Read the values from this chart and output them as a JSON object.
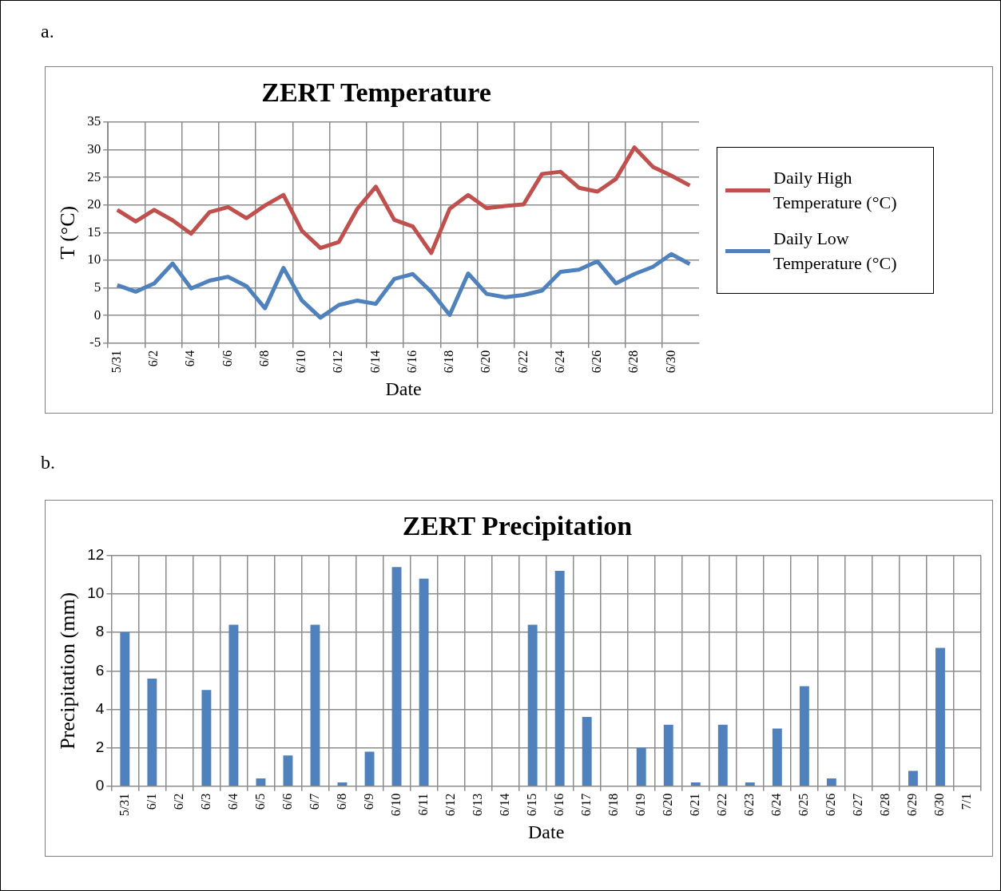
{
  "chart_data": [
    {
      "type": "line",
      "title": "ZERT Temperature",
      "annotations": [
        "a."
      ],
      "xlabel": "Date",
      "ylabel": "T (°C)",
      "categories": [
        "5/31",
        null,
        "6/2",
        null,
        "6/4",
        null,
        "6/6",
        null,
        "6/8",
        null,
        "6/10",
        null,
        "6/12",
        null,
        "6/14",
        null,
        "6/16",
        null,
        "6/18",
        null,
        "6/20",
        null,
        "6/22",
        null,
        "6/24",
        null,
        "6/26",
        null,
        "6/28",
        null,
        "6/30",
        null
      ],
      "series": [
        {
          "name": "Daily High Temperature (°C)",
          "color": "#c0504d",
          "values": [
            19.1,
            17.0,
            19.1,
            17.2,
            14.8,
            18.7,
            19.6,
            17.6,
            19.9,
            21.8,
            15.3,
            12.2,
            13.3,
            19.3,
            23.3,
            17.3,
            16.1,
            11.3,
            19.3,
            21.8,
            19.4,
            19.8,
            20.1,
            25.6,
            26.0,
            23.1,
            22.4,
            24.7,
            30.4,
            26.9,
            25.3,
            23.5
          ]
        },
        {
          "name": "Daily Low Temperature (°C)",
          "color": "#4f81bd",
          "values": [
            5.5,
            4.3,
            5.8,
            9.4,
            4.9,
            6.3,
            7.0,
            5.3,
            1.3,
            8.6,
            2.7,
            -0.4,
            1.9,
            2.7,
            2.1,
            6.6,
            7.5,
            4.3,
            0.1,
            7.6,
            3.9,
            3.3,
            3.7,
            4.5,
            7.9,
            8.3,
            9.8,
            5.8,
            7.5,
            8.8,
            11.1,
            9.3
          ]
        }
      ],
      "ylim": [
        -5,
        35
      ],
      "yticks": [
        -5,
        0,
        5,
        10,
        15,
        20,
        25,
        30,
        35
      ],
      "grid": true,
      "legend": "right",
      "marker": "none",
      "line_style": "solid"
    },
    {
      "type": "bar",
      "title": "ZERT Precipitation",
      "annotations": [
        "b."
      ],
      "xlabel": "Date",
      "ylabel": "Precipitation (mm)",
      "categories": [
        "5/31",
        "6/1",
        "6/2",
        "6/3",
        "6/4",
        "6/5",
        "6/6",
        "6/7",
        "6/8",
        "6/9",
        "6/10",
        "6/11",
        "6/12",
        "6/13",
        "6/14",
        "6/15",
        "6/16",
        "6/17",
        "6/18",
        "6/19",
        "6/20",
        "6/21",
        "6/22",
        "6/23",
        "6/24",
        "6/25",
        "6/26",
        "6/27",
        "6/28",
        "6/29",
        "6/30",
        "7/1"
      ],
      "series": [
        {
          "color": "#4f81bd",
          "values": [
            8,
            5.6,
            0,
            5,
            8.4,
            0.4,
            1.6,
            8.4,
            0.2,
            1.8,
            11.4,
            10.8,
            0,
            0,
            0,
            8.4,
            11.2,
            3.6,
            0,
            2,
            3.2,
            0.2,
            3.2,
            0.2,
            3,
            5.2,
            0.4,
            0,
            0,
            0.8,
            7.2,
            0
          ]
        }
      ],
      "ylim": [
        0,
        12
      ],
      "yticks": [
        0,
        2,
        4,
        6,
        8,
        10,
        12
      ],
      "grid": true
    }
  ]
}
